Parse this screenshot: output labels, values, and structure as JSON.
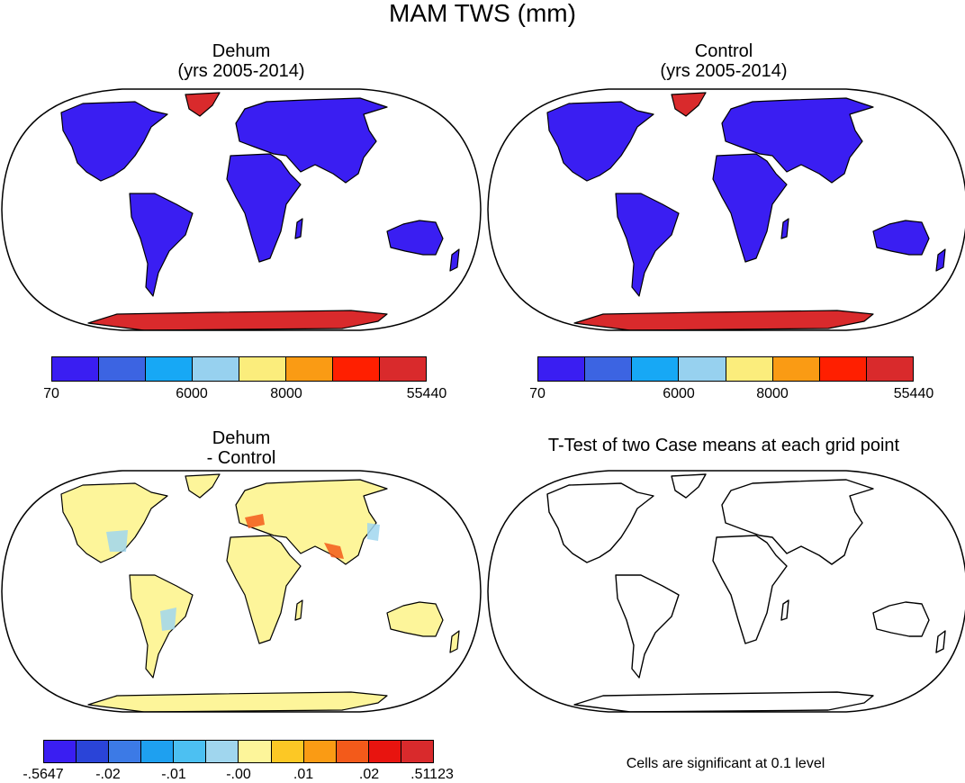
{
  "figure": {
    "title": "MAM TWS (mm)",
    "panels": [
      {
        "id": "dehum",
        "title_line1": "Dehum",
        "title_line2": "(yrs 2005-2014)"
      },
      {
        "id": "control",
        "title_line1": "Control",
        "title_line2": "(yrs 2005-2014)"
      },
      {
        "id": "diff",
        "title_line1": "Dehum",
        "title_line2": "- Control"
      },
      {
        "id": "ttest",
        "title_line1": "T-Test of two Case means at each grid point",
        "note": "Cells are significant at 0.1 level"
      }
    ],
    "colorbar_top": {
      "colors": [
        "#3a1ef2",
        "#3c64e2",
        "#17a8f5",
        "#97d1ef",
        "#fbed7c",
        "#fa9b14",
        "#ff1f00",
        "#d92a2c"
      ],
      "tick_labels": [
        "70",
        "6000",
        "8000",
        "55440"
      ]
    },
    "colorbar_bottom": {
      "colors": [
        "#3a1ef2",
        "#2a44d8",
        "#3c7ae6",
        "#1ea0f0",
        "#4cc0f2",
        "#a0d6ee",
        "#fdf59a",
        "#fcc825",
        "#fa9b14",
        "#f35a1a",
        "#e8140f",
        "#d92a2c"
      ],
      "tick_labels": [
        "-.5647",
        "-.02",
        "-.01",
        "-.00",
        ".01",
        ".02",
        ".51123"
      ]
    },
    "land_colors": {
      "tws": "#3a1ef2",
      "ice": "#d92a2c",
      "diff": "#fdf59a",
      "wet_spot": "#a0d6ee",
      "hot_spot": "#f35a1a"
    }
  },
  "chart_data": [
    {
      "type": "heatmap",
      "title": "Dehum (yrs 2005-2014)",
      "variable": "MAM TWS (mm)",
      "projection": "Robinson",
      "levels": [
        70,
        6000,
        8000,
        55440
      ],
      "dominant_land_class": "70 - 6000",
      "icesheet_class": "> 8000"
    },
    {
      "type": "heatmap",
      "title": "Control (yrs 2005-2014)",
      "variable": "MAM TWS (mm)",
      "projection": "Robinson",
      "levels": [
        70,
        6000,
        8000,
        55440
      ],
      "dominant_land_class": "70 - 6000",
      "icesheet_class": "> 8000"
    },
    {
      "type": "heatmap",
      "title": "Dehum - Control",
      "variable": "MAM TWS difference (mm)",
      "projection": "Robinson",
      "levels": [
        -0.5647,
        -0.02,
        -0.01,
        -0.0,
        0.01,
        0.02,
        0.51123
      ],
      "dominant_land_class": "-0.00 - 0.01"
    },
    {
      "type": "heatmap",
      "title": "T-Test of two Case means at each grid point",
      "note": "Cells are significant at 0.1 level",
      "significant_cells": 0
    }
  ]
}
